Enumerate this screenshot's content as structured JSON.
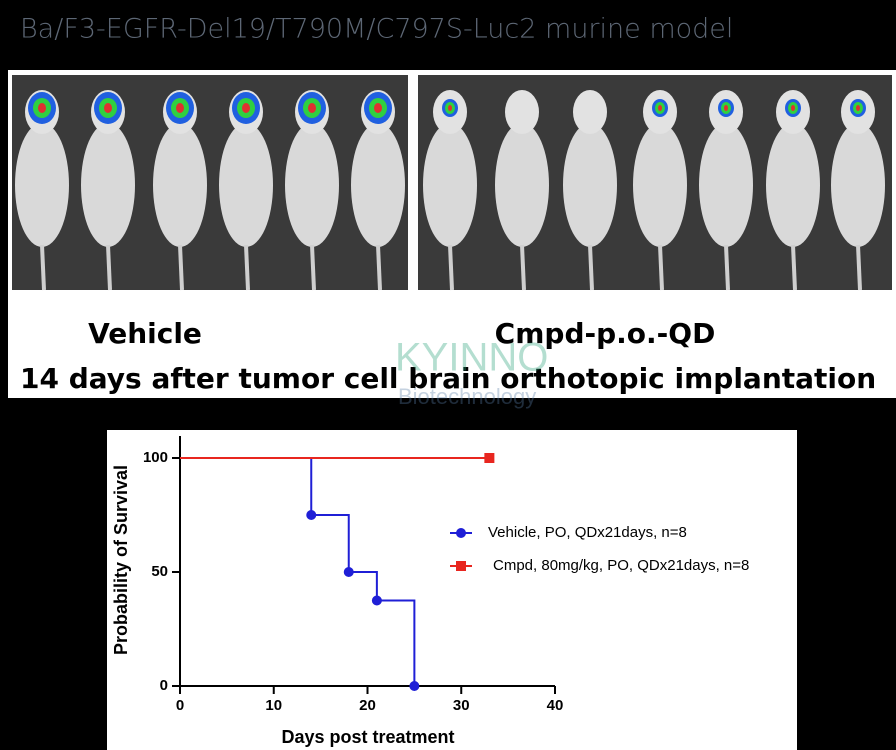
{
  "header": {
    "title": "Ba/F3-EGFR-Del19/T790M/C797S-Luc2 murine model"
  },
  "image": {
    "left_label": "Vehicle",
    "right_label": "Cmpd-p.o.-QD",
    "caption": "14 days after tumor cell brain orthotopic implantation",
    "watermark": "KYINNO",
    "watermark_sub": "Biotechnology"
  },
  "chart_data": {
    "type": "step",
    "ylabel": "Probability of Survival",
    "xlabel": "Days post treatment",
    "xlim": [
      0,
      40
    ],
    "ylim": [
      0,
      100
    ],
    "xticks": [
      0,
      10,
      20,
      30,
      40
    ],
    "yticks": [
      0,
      50,
      100
    ],
    "series": [
      {
        "name": "Vehicle, PO, QDx21days, n=8",
        "color": "#1f1fd6",
        "marker": "circle",
        "x": [
          0,
          14,
          18,
          21,
          25
        ],
        "values": [
          100,
          75,
          50,
          37.5,
          0
        ]
      },
      {
        "name": "Cmpd, 80mg/kg, PO, QDx21days, n=8",
        "color": "#e8261f",
        "marker": "square",
        "x": [
          0,
          33
        ],
        "values": [
          100,
          100
        ]
      }
    ]
  }
}
